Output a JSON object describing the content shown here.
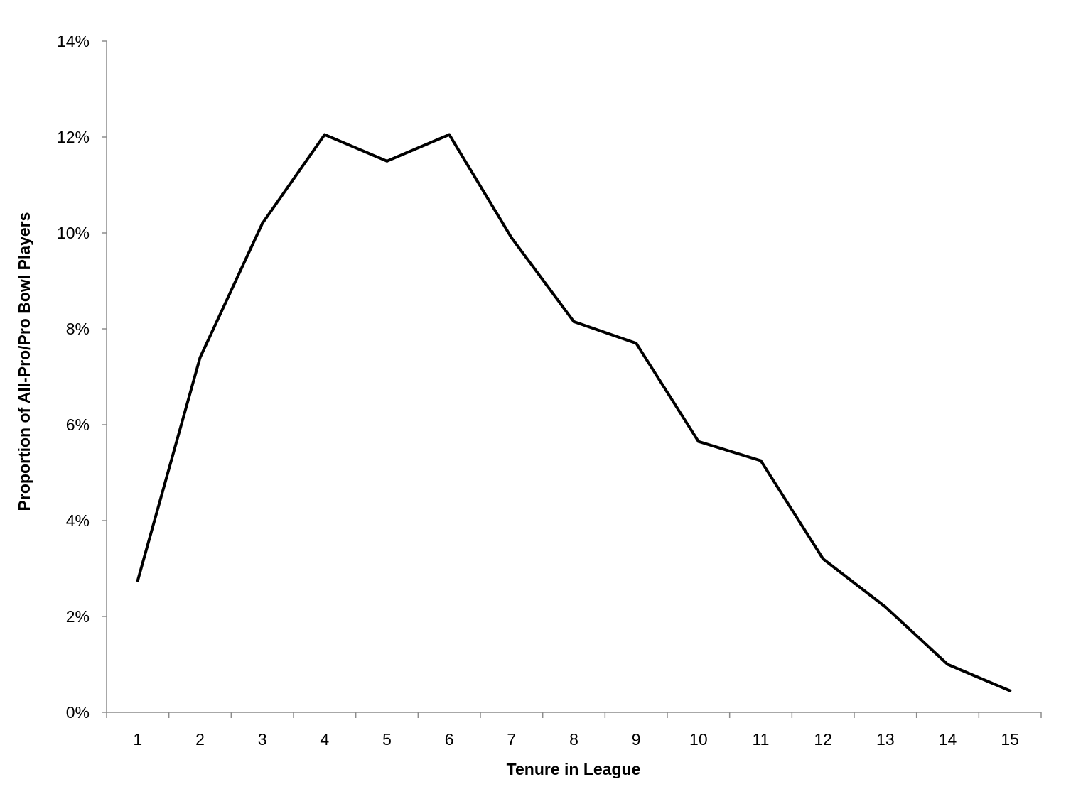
{
  "chart_data": {
    "type": "line",
    "title": "",
    "xlabel": "Tenure in League",
    "ylabel": "Proportion of All-Pro/Pro Bowl Players",
    "x": [
      1,
      2,
      3,
      4,
      5,
      6,
      7,
      8,
      9,
      10,
      11,
      12,
      13,
      14,
      15
    ],
    "x_tick_labels": [
      "1",
      "2",
      "3",
      "4",
      "5",
      "6",
      "7",
      "8",
      "9",
      "10",
      "11",
      "12",
      "13",
      "14",
      "15"
    ],
    "series": [
      {
        "values": [
          2.75,
          7.4,
          10.2,
          12.05,
          11.5,
          12.05,
          9.9,
          8.15,
          7.7,
          5.65,
          5.25,
          3.2,
          2.2,
          1.0,
          0.45
        ]
      }
    ],
    "ylim": [
      0,
      14
    ],
    "y_ticks": [
      0,
      2,
      4,
      6,
      8,
      10,
      12,
      14
    ],
    "y_tick_labels": [
      "0%",
      "2%",
      "4%",
      "6%",
      "8%",
      "10%",
      "12%",
      "14%"
    ],
    "y_unit": "%",
    "grid": false,
    "legend": "none",
    "line_color": "#000000"
  }
}
